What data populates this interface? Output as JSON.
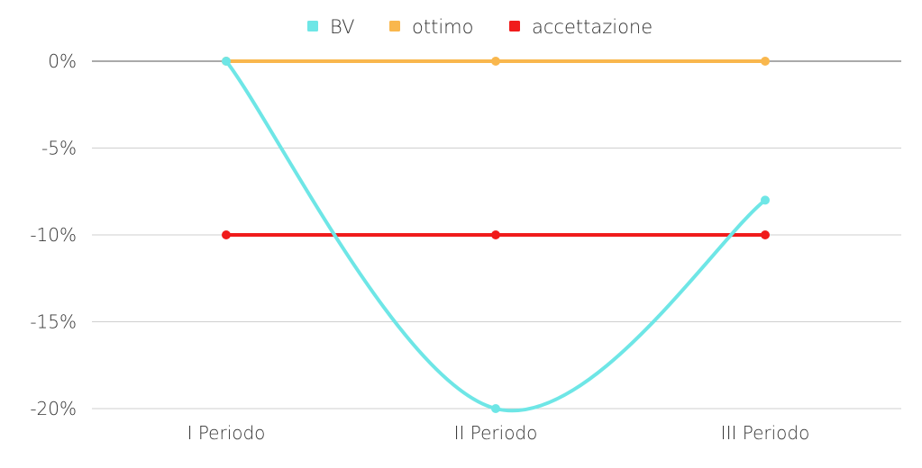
{
  "chart_data": {
    "type": "line",
    "title": "",
    "xlabel": "",
    "ylabel": "",
    "categories": [
      "I Periodo",
      "II Periodo",
      "III Periodo"
    ],
    "series": [
      {
        "name": "BV",
        "values": [
          0,
          -20,
          -8
        ],
        "color": "#6EE6E6",
        "smooth": true
      },
      {
        "name": "ottimo",
        "values": [
          0,
          0,
          0
        ],
        "color": "#F9B74D",
        "smooth": false
      },
      {
        "name": "accettazione",
        "values": [
          -10,
          -10,
          -10
        ],
        "color": "#F01B1B",
        "smooth": false
      }
    ],
    "ylim": [
      -20,
      0
    ],
    "yticks": [
      0,
      -5,
      -10,
      -15,
      -20
    ],
    "ytick_labels": [
      "0%",
      "-5%",
      "-10%",
      "-15%",
      "-20%"
    ],
    "grid": true,
    "legend_position": "top-center"
  }
}
